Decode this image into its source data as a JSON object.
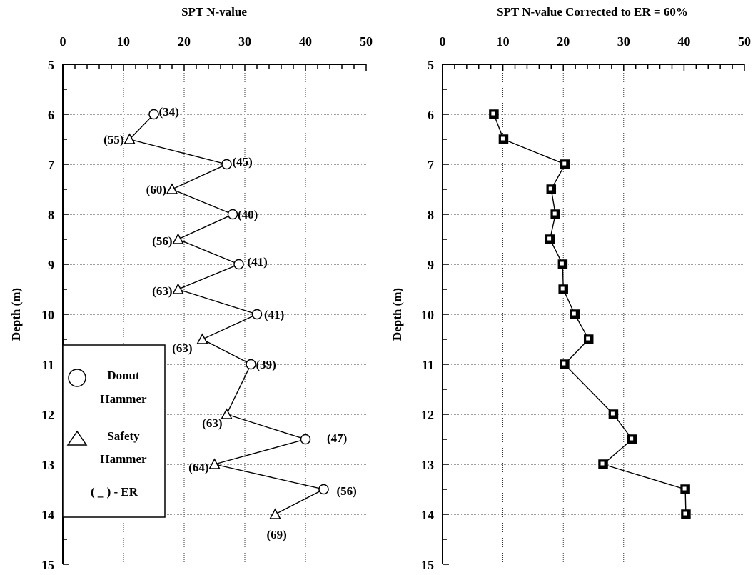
{
  "chart_data": [
    {
      "type": "scatter",
      "title": "SPT N-value",
      "xlabel": "",
      "ylabel": "Depth (m)",
      "xlim": [
        0,
        50
      ],
      "ylim": [
        5,
        15
      ],
      "y_inverted": true,
      "x_axis_position": "top",
      "xticks": [
        "0",
        "10",
        "20",
        "30",
        "40",
        "50"
      ],
      "yticks": [
        "5",
        "6",
        "7",
        "8",
        "9",
        "10",
        "11",
        "12",
        "13",
        "14",
        "15"
      ],
      "grid": true,
      "connected": true,
      "points": [
        {
          "x": 15,
          "y": 6.0,
          "hammer": "donut",
          "label": "(34)"
        },
        {
          "x": 11,
          "y": 6.5,
          "hammer": "safety",
          "label": "(55)"
        },
        {
          "x": 27,
          "y": 7.0,
          "hammer": "donut",
          "label": "(45)"
        },
        {
          "x": 18,
          "y": 7.5,
          "hammer": "safety",
          "label": "(60)"
        },
        {
          "x": 28,
          "y": 8.0,
          "hammer": "donut",
          "label": "(40)"
        },
        {
          "x": 19,
          "y": 8.5,
          "hammer": "safety",
          "label": "(56)"
        },
        {
          "x": 29,
          "y": 9.0,
          "hammer": "donut",
          "label": "(41)"
        },
        {
          "x": 19,
          "y": 9.5,
          "hammer": "safety",
          "label": "(63)"
        },
        {
          "x": 32,
          "y": 10.0,
          "hammer": "donut",
          "label": "(41)"
        },
        {
          "x": 23,
          "y": 10.5,
          "hammer": "safety",
          "label": "(63)"
        },
        {
          "x": 31,
          "y": 11.0,
          "hammer": "donut",
          "label": "(39)"
        },
        {
          "x": 27,
          "y": 12.0,
          "hammer": "safety",
          "label": "(63)"
        },
        {
          "x": 40,
          "y": 12.5,
          "hammer": "donut",
          "label": "(47)"
        },
        {
          "x": 25,
          "y": 13.0,
          "hammer": "safety",
          "label": "(64)"
        },
        {
          "x": 43,
          "y": 13.5,
          "hammer": "donut",
          "label": "(56)"
        },
        {
          "x": 35,
          "y": 14.0,
          "hammer": "safety",
          "label": "(69)"
        }
      ],
      "legend": {
        "placement": "bottom-left",
        "entries": [
          {
            "marker": "circle",
            "line1": "Donut",
            "line2": "Hammer"
          },
          {
            "marker": "triangle",
            "line1": "Safety",
            "line2": "Hammer"
          }
        ],
        "note": "( _ ) - ER"
      }
    },
    {
      "type": "line",
      "title": "SPT N-value Corrected to ER = 60%",
      "xlabel": "",
      "ylabel": "Depth (m)",
      "xlim": [
        0,
        50
      ],
      "ylim": [
        5,
        15
      ],
      "y_inverted": true,
      "x_axis_position": "top",
      "xticks": [
        "0",
        "10",
        "20",
        "30",
        "40",
        "50"
      ],
      "yticks": [
        "5",
        "6",
        "7",
        "8",
        "9",
        "10",
        "11",
        "12",
        "13",
        "14",
        "15"
      ],
      "grid": true,
      "marker": "square",
      "points": [
        {
          "x": 8.5,
          "y": 6.0
        },
        {
          "x": 10.1,
          "y": 6.5
        },
        {
          "x": 20.3,
          "y": 7.0
        },
        {
          "x": 18.0,
          "y": 7.5
        },
        {
          "x": 18.7,
          "y": 8.0
        },
        {
          "x": 17.8,
          "y": 8.5
        },
        {
          "x": 19.9,
          "y": 9.0
        },
        {
          "x": 20.0,
          "y": 9.5
        },
        {
          "x": 21.9,
          "y": 10.0
        },
        {
          "x": 24.2,
          "y": 10.5
        },
        {
          "x": 20.2,
          "y": 11.0
        },
        {
          "x": 28.3,
          "y": 12.0
        },
        {
          "x": 31.4,
          "y": 12.5
        },
        {
          "x": 26.6,
          "y": 13.0
        },
        {
          "x": 40.2,
          "y": 13.5
        },
        {
          "x": 40.3,
          "y": 14.0
        }
      ]
    }
  ]
}
